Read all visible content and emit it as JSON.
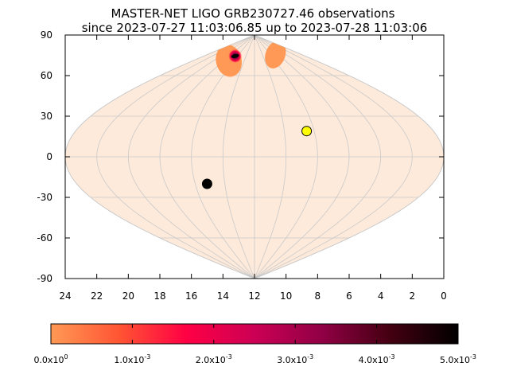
{
  "chart_data": {
    "type": "scatter",
    "projection": "sinusoidal (equal-area) all-sky map",
    "title": "MASTER-NET LIGO GRB230727.46 observations",
    "subtitle": "since 2023-07-27 11:03:06.85 up to 2023-07-28 11:03:06",
    "xlabel": "",
    "ylabel": "",
    "xlim": [
      24,
      0
    ],
    "ylim": [
      -90,
      90
    ],
    "x_ticks": [
      "24",
      "22",
      "20",
      "18",
      "16",
      "14",
      "12",
      "10",
      "8",
      "6",
      "4",
      "2",
      "0"
    ],
    "y_ticks": [
      "90",
      "60",
      "30",
      "0",
      "-30",
      "-60",
      "-90"
    ],
    "grid": true,
    "points": [
      {
        "marker": "sun",
        "ra_h": 8.5,
        "dec_deg": 19,
        "color": "#ffff00"
      },
      {
        "marker": "moon",
        "ra_h": 15.2,
        "dec_deg": -20,
        "color": "#000000"
      }
    ],
    "probability_regions": [
      {
        "ra_range_h": [
          14.5,
          19.5
        ],
        "dec_range_deg": [
          59,
          83
        ],
        "peak_probability": 0.005,
        "peak_ra_h": 16.6,
        "peak_dec_deg": 74.5
      },
      {
        "ra_range_h": [
          4.2,
          9.2
        ],
        "dec_range_deg": [
          65,
          86
        ],
        "peak_probability": 0.0005
      }
    ],
    "colorbar": {
      "min": 0,
      "max": 0.005,
      "ticks": [
        {
          "mant": "0.0",
          "exp": "0"
        },
        {
          "mant": "1.0",
          "exp": "-3"
        },
        {
          "mant": "2.0",
          "exp": "-3"
        },
        {
          "mant": "3.0",
          "exp": "-3"
        },
        {
          "mant": "4.0",
          "exp": "-3"
        },
        {
          "mant": "5.0",
          "exp": "-3"
        }
      ],
      "colors": [
        "#ff9955",
        "#ff5533",
        "#ff0044",
        "#cc0055",
        "#900044",
        "#440011",
        "#000000"
      ]
    },
    "colors": {
      "sky_background": "#fdeadb",
      "grid": "#c9c9c9",
      "frame": "#000000"
    }
  }
}
